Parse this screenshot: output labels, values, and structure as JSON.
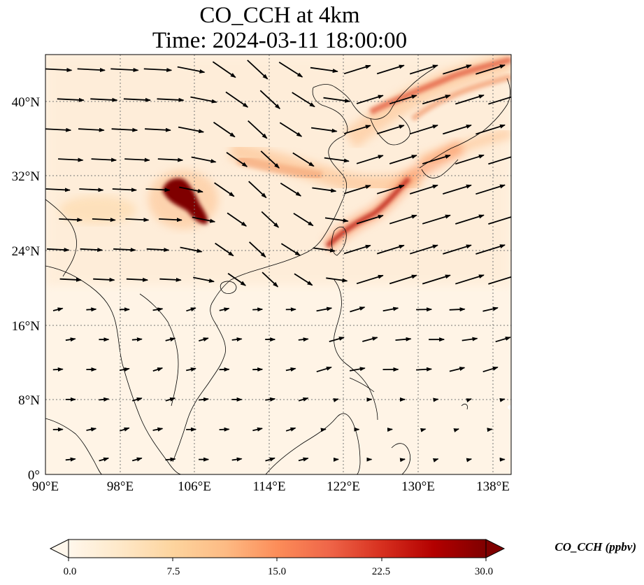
{
  "title": {
    "line1": "CO_CCH at 4km",
    "line2": "Time: 2024-03-11 18:00:00"
  },
  "map": {
    "lon_range": [
      90,
      140
    ],
    "lat_range": [
      0,
      45
    ],
    "x_ticks": [
      "90°E",
      "98°E",
      "106°E",
      "114°E",
      "122°E",
      "130°E",
      "138°E"
    ],
    "y_ticks": [
      "0°",
      "8°N",
      "16°N",
      "24°N",
      "32°N",
      "40°N"
    ],
    "gridlines": true,
    "coastlines": true
  },
  "colorbar": {
    "label": "CO_CCH (ppbv)",
    "ticks": [
      "0.0",
      "7.5",
      "15.0",
      "22.5",
      "30.0"
    ],
    "min": 0,
    "max": 30,
    "extend": "both",
    "colormap": [
      "#fff7ec",
      "#fee8c8",
      "#fdd49e",
      "#fdbb84",
      "#fc8d59",
      "#ef6548",
      "#d7301f",
      "#b30000",
      "#7f0000"
    ]
  }
}
